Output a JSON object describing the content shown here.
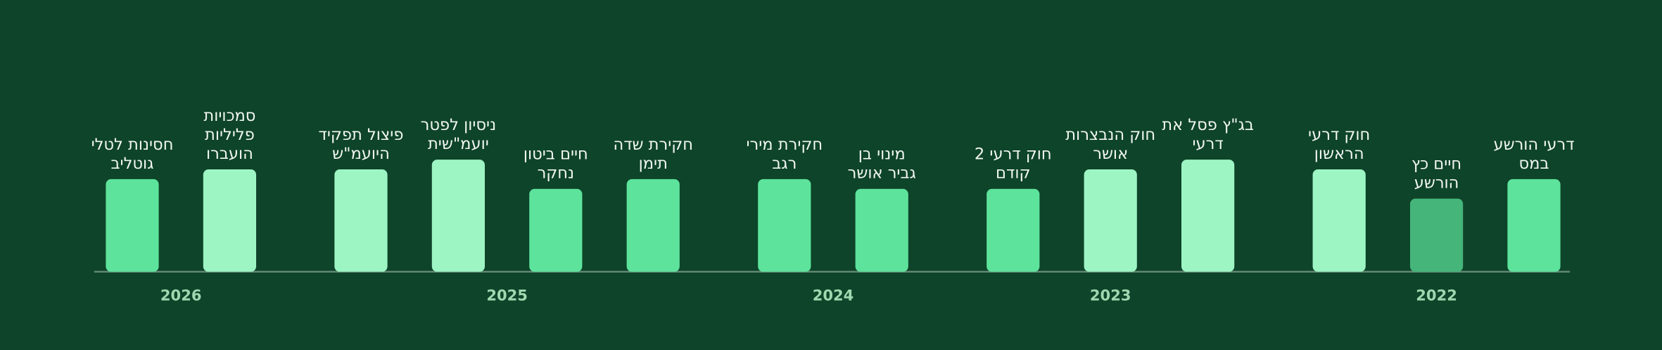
{
  "chart_data": {
    "type": "bar",
    "ylim": [
      -6.5,
      5
    ],
    "groups": [
      {
        "name": "2022",
        "labels": [
          [
            "דרעי הורשע",
            "במס"
          ],
          [
            "חיים כץ",
            "הורשע"
          ],
          [
            "חוק דרעי",
            "הראשון"
          ]
        ],
        "values": [
          3,
          1,
          4
        ],
        "colors": [
          "#5de39c",
          "#45b57a",
          "#9df5c4"
        ]
      },
      {
        "name": "2023",
        "labels": [
          [
            "בג\"ץ פסל את",
            "דרעי"
          ],
          [
            "חוק הנבצרות",
            "אושר"
          ],
          [
            "חוק דרעי 2",
            "קודם"
          ]
        ],
        "values": [
          5,
          4,
          2
        ],
        "colors": [
          "#9df5c4",
          "#9df5c4",
          "#5de39c"
        ]
      },
      {
        "name": "2024",
        "labels": [
          [
            "מינוי בן",
            "גביר אושר"
          ],
          [
            "חקירת מירי",
            "רגב"
          ]
        ],
        "values": [
          2,
          3
        ],
        "colors": [
          "#5de39c",
          "#5de39c"
        ]
      },
      {
        "name": "2025",
        "labels": [
          [
            "חקירת שדה",
            "תימן"
          ],
          [
            "חיים ביטון",
            "נחקר"
          ],
          [
            "ניסיון לפטר",
            "יועמ\"שית"
          ],
          [
            "פיצול תפקיד",
            "היועמ\"ש"
          ]
        ],
        "values": [
          3,
          2,
          5,
          4
        ],
        "colors": [
          "#5de39c",
          "#5de39c",
          "#9df5c4",
          "#9df5c4"
        ]
      },
      {
        "name": "2026",
        "labels": [
          [
            "סמכויות",
            "פליליות",
            "הועברו"
          ],
          [
            "חסינות לטלי",
            "גוטליב"
          ]
        ],
        "values": [
          4,
          3
        ],
        "colors": [
          "#9df5c4",
          "#5de39c"
        ]
      }
    ]
  }
}
